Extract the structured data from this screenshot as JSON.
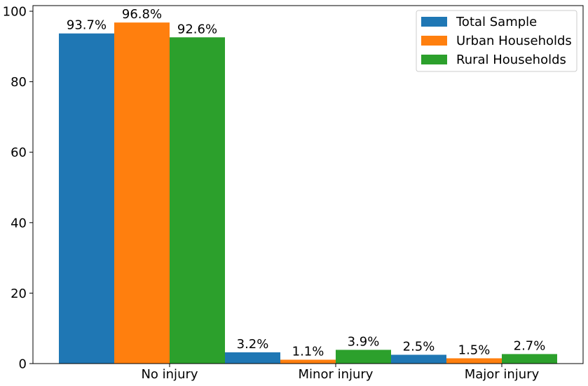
{
  "chart_data": {
    "type": "bar",
    "categories": [
      "No injury",
      "Minor injury",
      "Major injury"
    ],
    "series": [
      {
        "name": "Total Sample",
        "color": "#1f77b4",
        "values": [
          93.7,
          3.2,
          2.5
        ],
        "labels": [
          "93.7%",
          "3.2%",
          "2.5%"
        ]
      },
      {
        "name": "Urban Households",
        "color": "#ff7f0e",
        "values": [
          96.8,
          1.1,
          1.5
        ],
        "labels": [
          "96.8%",
          "1.1%",
          "1.5%"
        ]
      },
      {
        "name": "Rural Households",
        "color": "#2ca02c",
        "values": [
          92.6,
          3.9,
          2.7
        ],
        "labels": [
          "92.6%",
          "3.9%",
          "2.7%"
        ]
      }
    ],
    "yticks": [
      0,
      20,
      40,
      60,
      80,
      100
    ],
    "ylim": [
      0,
      101.6
    ],
    "legend_position": "top-right",
    "grid": false,
    "title": "",
    "xlabel": "",
    "ylabel": ""
  }
}
